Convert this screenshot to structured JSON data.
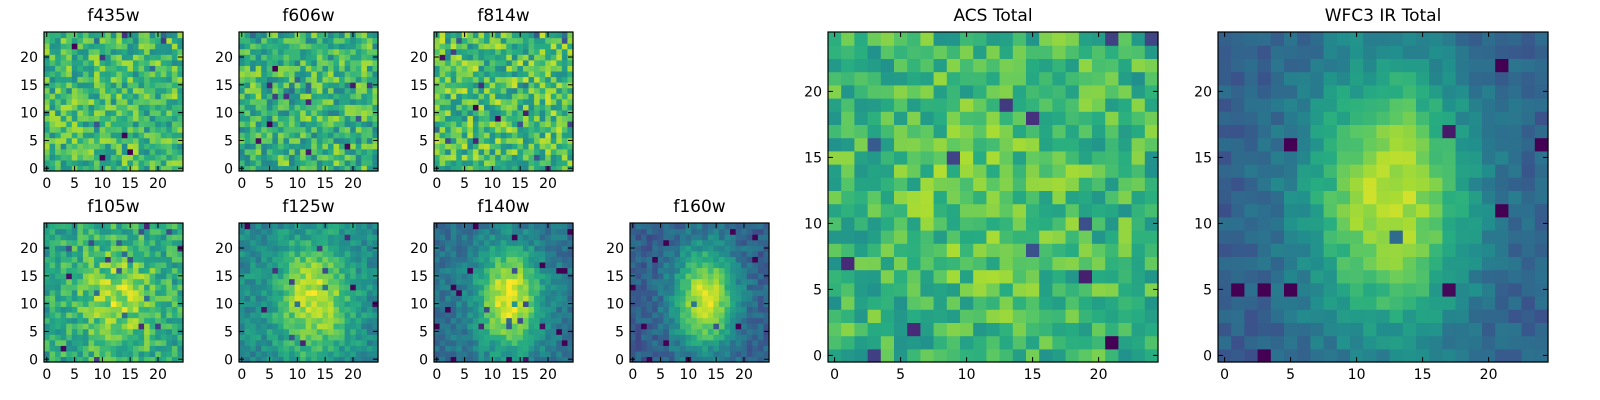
{
  "chart_data": [
    {
      "type": "heatmap",
      "title": "f435w",
      "grid_size": 25,
      "xlim": [
        -0.5,
        24.5
      ],
      "ylim": [
        -0.5,
        24.5
      ],
      "xticks": [
        0,
        5,
        10,
        15,
        20
      ],
      "yticks": [
        0,
        5,
        10,
        15,
        20
      ],
      "colormap": "viridis",
      "noise_seed": 11,
      "blob": {
        "cx": 12,
        "cy": 12,
        "sx": 5,
        "sy": 8,
        "amp": 0.0
      },
      "base": 0.68,
      "noise": 0.42,
      "xlabel": "",
      "ylabel": ""
    },
    {
      "type": "heatmap",
      "title": "f606w",
      "grid_size": 25,
      "xlim": [
        -0.5,
        24.5
      ],
      "ylim": [
        -0.5,
        24.5
      ],
      "xticks": [
        0,
        5,
        10,
        15,
        20
      ],
      "yticks": [
        0,
        5,
        10,
        15,
        20
      ],
      "colormap": "viridis",
      "noise_seed": 23,
      "blob": {
        "cx": 12,
        "cy": 12,
        "sx": 5,
        "sy": 8,
        "amp": 0.0
      },
      "base": 0.66,
      "noise": 0.44,
      "xlabel": "",
      "ylabel": ""
    },
    {
      "type": "heatmap",
      "title": "f814w",
      "grid_size": 25,
      "xlim": [
        -0.5,
        24.5
      ],
      "ylim": [
        -0.5,
        24.5
      ],
      "xticks": [
        0,
        5,
        10,
        15,
        20
      ],
      "yticks": [
        0,
        5,
        10,
        15,
        20
      ],
      "colormap": "viridis",
      "noise_seed": 37,
      "blob": {
        "cx": 12,
        "cy": 12,
        "sx": 5,
        "sy": 8,
        "amp": 0.0
      },
      "base": 0.7,
      "noise": 0.46,
      "xlabel": "",
      "ylabel": ""
    },
    {
      "type": "heatmap",
      "title": "f105w",
      "grid_size": 25,
      "xlim": [
        -0.5,
        24.5
      ],
      "ylim": [
        -0.5,
        24.5
      ],
      "xticks": [
        0,
        5,
        10,
        15,
        20
      ],
      "yticks": [
        0,
        5,
        10,
        15,
        20
      ],
      "colormap": "viridis",
      "noise_seed": 41,
      "blob": {
        "cx": 13,
        "cy": 11,
        "sx": 5,
        "sy": 7,
        "amp": 0.25
      },
      "base": 0.6,
      "noise": 0.32,
      "xlabel": "",
      "ylabel": ""
    },
    {
      "type": "heatmap",
      "title": "f125w",
      "grid_size": 25,
      "xlim": [
        -0.5,
        24.5
      ],
      "ylim": [
        -0.5,
        24.5
      ],
      "xticks": [
        0,
        5,
        10,
        15,
        20
      ],
      "yticks": [
        0,
        5,
        10,
        15,
        20
      ],
      "colormap": "viridis",
      "noise_seed": 53,
      "blob": {
        "cx": 13,
        "cy": 11,
        "sx": 4.5,
        "sy": 7,
        "amp": 0.45
      },
      "base": 0.48,
      "noise": 0.22,
      "xlabel": "",
      "ylabel": ""
    },
    {
      "type": "heatmap",
      "title": "f140w",
      "grid_size": 25,
      "xlim": [
        -0.5,
        24.5
      ],
      "ylim": [
        -0.5,
        24.5
      ],
      "xticks": [
        0,
        5,
        10,
        15,
        20
      ],
      "yticks": [
        0,
        5,
        10,
        15,
        20
      ],
      "colormap": "viridis",
      "noise_seed": 67,
      "blob": {
        "cx": 13,
        "cy": 11,
        "sx": 4,
        "sy": 6.5,
        "amp": 0.6
      },
      "base": 0.38,
      "noise": 0.18,
      "xlabel": "",
      "ylabel": ""
    },
    {
      "type": "heatmap",
      "title": "f160w",
      "grid_size": 25,
      "xlim": [
        -0.5,
        24.5
      ],
      "ylim": [
        -0.5,
        24.5
      ],
      "xticks": [
        0,
        5,
        10,
        15,
        20
      ],
      "yticks": [
        0,
        5,
        10,
        15,
        20
      ],
      "colormap": "viridis",
      "noise_seed": 79,
      "blob": {
        "cx": 13,
        "cy": 11,
        "sx": 4,
        "sy": 6.5,
        "amp": 0.65
      },
      "base": 0.3,
      "noise": 0.18,
      "xlabel": "",
      "ylabel": ""
    },
    {
      "type": "heatmap",
      "title": "ACS Total",
      "grid_size": 25,
      "xlim": [
        -0.5,
        24.5
      ],
      "ylim": [
        -0.5,
        24.5
      ],
      "xticks": [
        0,
        5,
        10,
        15,
        20
      ],
      "yticks": [
        0,
        5,
        10,
        15,
        20
      ],
      "colormap": "viridis",
      "noise_seed": 91,
      "blob": {
        "cx": 12,
        "cy": 13,
        "sx": 6,
        "sy": 8,
        "amp": 0.08
      },
      "base": 0.66,
      "noise": 0.34,
      "xlabel": "",
      "ylabel": ""
    },
    {
      "type": "heatmap",
      "title": "WFC3 IR Total",
      "grid_size": 25,
      "xlim": [
        -0.5,
        24.5
      ],
      "ylim": [
        -0.5,
        24.5
      ],
      "xticks": [
        0,
        5,
        10,
        15,
        20
      ],
      "yticks": [
        0,
        5,
        10,
        15,
        20
      ],
      "colormap": "viridis",
      "noise_seed": 103,
      "blob": {
        "cx": 12.5,
        "cy": 12,
        "sx": 4.5,
        "sy": 7.5,
        "amp": 0.62
      },
      "base": 0.3,
      "noise": 0.14,
      "xlabel": "",
      "ylabel": ""
    }
  ]
}
